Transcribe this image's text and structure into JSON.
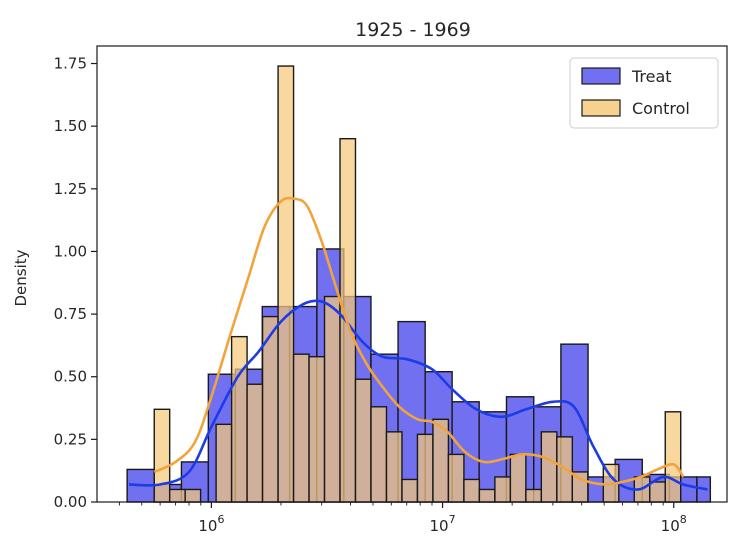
{
  "chart_data": {
    "type": "bar",
    "title": "1925 - 1969",
    "xlabel": "",
    "ylabel": "Density",
    "x_scale": "log",
    "xlim": [
      320000,
      170000000
    ],
    "ylim": [
      0,
      1.82
    ],
    "y_ticks": [
      0.0,
      0.25,
      0.5,
      0.75,
      1.0,
      1.25,
      1.5,
      1.75
    ],
    "y_tick_labels": [
      "0.00",
      "0.25",
      "0.50",
      "0.75",
      "1.00",
      "1.25",
      "1.50",
      "1.75"
    ],
    "x_ticks": [
      1000000,
      10000000,
      100000000
    ],
    "x_tick_labels": [
      {
        "base": "10",
        "exp": "6"
      },
      {
        "base": "10",
        "exp": "7"
      },
      {
        "base": "10",
        "exp": "8"
      }
    ],
    "legend_position": "top-right",
    "grid": false,
    "series": [
      {
        "name": "Treat",
        "color": "#0000ff",
        "fill_color": "#7070f0",
        "kde_color": "#1e3ce6",
        "bins": [
          {
            "x0": 432000,
            "x1": 566000,
            "y": 0.13
          },
          {
            "x0": 566000,
            "x1": 742000,
            "y": 0.07
          },
          {
            "x0": 742000,
            "x1": 970000,
            "y": 0.16
          },
          {
            "x0": 970000,
            "x1": 1270000,
            "y": 0.51
          },
          {
            "x0": 1270000,
            "x1": 1660000,
            "y": 0.53
          },
          {
            "x0": 1660000,
            "x1": 2180000,
            "y": 0.78
          },
          {
            "x0": 2180000,
            "x1": 2860000,
            "y": 0.78
          },
          {
            "x0": 2860000,
            "x1": 3740000,
            "y": 1.01
          },
          {
            "x0": 3740000,
            "x1": 4900000,
            "y": 0.82
          },
          {
            "x0": 4900000,
            "x1": 6420000,
            "y": 0.59
          },
          {
            "x0": 6420000,
            "x1": 8410000,
            "y": 0.72
          },
          {
            "x0": 8410000,
            "x1": 11000000,
            "y": 0.52
          },
          {
            "x0": 11000000,
            "x1": 14400000,
            "y": 0.4
          },
          {
            "x0": 14400000,
            "x1": 18900000,
            "y": 0.36
          },
          {
            "x0": 18900000,
            "x1": 24800000,
            "y": 0.42
          },
          {
            "x0": 24800000,
            "x1": 32500000,
            "y": 0.38
          },
          {
            "x0": 32500000,
            "x1": 42600000,
            "y": 0.63
          },
          {
            "x0": 42600000,
            "x1": 55800000,
            "y": 0.1
          },
          {
            "x0": 55800000,
            "x1": 73100000,
            "y": 0.17
          },
          {
            "x0": 73100000,
            "x1": 95800000,
            "y": 0.11
          },
          {
            "x0": 95800000,
            "x1": 126000000,
            "y": 0.1
          },
          {
            "x0": 126000000,
            "x1": 144000000,
            "y": 0.1
          }
        ],
        "kde": {
          "x": [
            440000,
            600000,
            800000,
            1000000,
            1300000,
            1600000,
            2000000,
            2500000,
            3000000,
            3600000,
            4500000,
            5500000,
            7000000,
            9000000,
            11000000,
            14000000,
            18000000,
            23000000,
            30000000,
            37000000,
            45000000,
            55000000,
            70000000,
            90000000,
            110000000,
            140000000
          ],
          "y": [
            0.07,
            0.07,
            0.12,
            0.3,
            0.5,
            0.6,
            0.72,
            0.79,
            0.8,
            0.75,
            0.64,
            0.58,
            0.57,
            0.53,
            0.45,
            0.37,
            0.34,
            0.37,
            0.4,
            0.38,
            0.22,
            0.09,
            0.05,
            0.1,
            0.07,
            0.05
          ]
        }
      },
      {
        "name": "Control",
        "color": "#ffa500",
        "fill_color": "#f6c97a",
        "kde_color": "#f0a43a",
        "bins": [
          {
            "x0": 566000,
            "x1": 660000,
            "y": 0.37
          },
          {
            "x0": 660000,
            "x1": 770000,
            "y": 0.05
          },
          {
            "x0": 770000,
            "x1": 898000,
            "y": 0.05
          },
          {
            "x0": 1048000,
            "x1": 1223000,
            "y": 0.31
          },
          {
            "x0": 1223000,
            "x1": 1427000,
            "y": 0.66
          },
          {
            "x0": 1427000,
            "x1": 1665000,
            "y": 0.47
          },
          {
            "x0": 1665000,
            "x1": 1943000,
            "y": 0.74
          },
          {
            "x0": 1943000,
            "x1": 2267000,
            "y": 1.74
          },
          {
            "x0": 2267000,
            "x1": 2645000,
            "y": 0.59
          },
          {
            "x0": 2645000,
            "x1": 3086000,
            "y": 0.58
          },
          {
            "x0": 3086000,
            "x1": 3601000,
            "y": 0.82
          },
          {
            "x0": 3601000,
            "x1": 4201000,
            "y": 1.45
          },
          {
            "x0": 4201000,
            "x1": 4902000,
            "y": 0.49
          },
          {
            "x0": 4902000,
            "x1": 5720000,
            "y": 0.38
          },
          {
            "x0": 5720000,
            "x1": 6674000,
            "y": 0.28
          },
          {
            "x0": 6674000,
            "x1": 7787000,
            "y": 0.09
          },
          {
            "x0": 7787000,
            "x1": 9086000,
            "y": 0.27
          },
          {
            "x0": 9086000,
            "x1": 10600000,
            "y": 0.33
          },
          {
            "x0": 10600000,
            "x1": 12370000,
            "y": 0.19
          },
          {
            "x0": 12370000,
            "x1": 14430000,
            "y": 0.09
          },
          {
            "x0": 14430000,
            "x1": 16840000,
            "y": 0.05
          },
          {
            "x0": 16840000,
            "x1": 19650000,
            "y": 0.1
          },
          {
            "x0": 19650000,
            "x1": 22930000,
            "y": 0.19
          },
          {
            "x0": 22930000,
            "x1": 26750000,
            "y": 0.05
          },
          {
            "x0": 26750000,
            "x1": 31220000,
            "y": 0.28
          },
          {
            "x0": 31220000,
            "x1": 36420000,
            "y": 0.26
          },
          {
            "x0": 36420000,
            "x1": 42500000,
            "y": 0.12
          },
          {
            "x0": 49590000,
            "x1": 57860000,
            "y": 0.15
          },
          {
            "x0": 67510000,
            "x1": 78770000,
            "y": 0.1
          },
          {
            "x0": 78770000,
            "x1": 91910000,
            "y": 0.08
          },
          {
            "x0": 91910000,
            "x1": 107200000,
            "y": 0.36
          }
        ],
        "kde": {
          "x": [
            566000,
            700000,
            850000,
            1000000,
            1200000,
            1450000,
            1700000,
            2000000,
            2300000,
            2600000,
            3000000,
            3400000,
            4000000,
            4700000,
            5500000,
            6500000,
            7800000,
            9000000,
            10500000,
            12500000,
            15000000,
            18000000,
            22000000,
            27000000,
            33000000,
            40000000,
            50000000,
            60000000,
            72000000,
            85000000,
            100000000,
            110000000
          ],
          "y": [
            0.12,
            0.16,
            0.24,
            0.42,
            0.66,
            0.9,
            1.1,
            1.2,
            1.21,
            1.18,
            1.04,
            0.88,
            0.68,
            0.55,
            0.46,
            0.38,
            0.33,
            0.32,
            0.28,
            0.2,
            0.16,
            0.17,
            0.19,
            0.18,
            0.14,
            0.09,
            0.07,
            0.08,
            0.1,
            0.13,
            0.15,
            0.1
          ]
        }
      }
    ]
  }
}
